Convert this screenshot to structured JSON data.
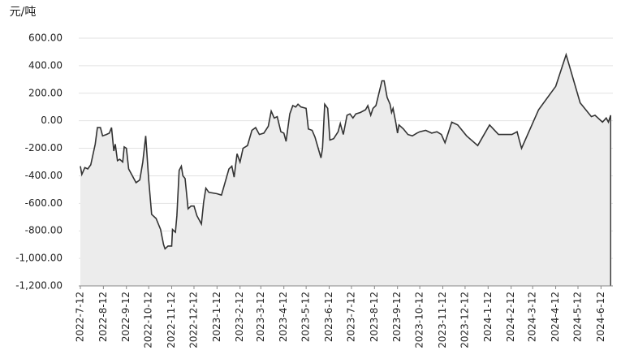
{
  "chart_data": {
    "type": "area",
    "y_unit": "元/吨",
    "color": "#333333",
    "fill": "#ececec",
    "grid": true,
    "x": [
      "2022-7-12",
      "2022-7-14",
      "2022-7-18",
      "2022-7-22",
      "2022-7-26",
      "2022-8-1",
      "2022-8-4",
      "2022-8-8",
      "2022-8-11",
      "2022-8-16",
      "2022-8-20",
      "2022-8-23",
      "2022-8-26",
      "2022-8-28",
      "2022-8-31",
      "2022-9-3",
      "2022-9-7",
      "2022-9-9",
      "2022-9-12",
      "2022-9-15",
      "2022-9-25",
      "2022-9-30",
      "2022-10-4",
      "2022-10-8",
      "2022-10-12",
      "2022-10-16",
      "2022-10-22",
      "2022-10-28",
      "2022-11-1",
      "2022-11-3",
      "2022-11-7",
      "2022-11-12",
      "2022-11-13",
      "2022-11-17",
      "2022-11-19",
      "2022-11-22",
      "2022-11-25",
      "2022-11-27",
      "2022-11-30",
      "2022-12-4",
      "2022-12-8",
      "2022-12-12",
      "2022-12-16",
      "2022-12-22",
      "2022-12-25",
      "2022-12-28",
      "2023-1-1",
      "2023-1-12",
      "2023-1-18",
      "2023-1-28",
      "2023-2-1",
      "2023-2-4",
      "2023-2-8",
      "2023-2-12",
      "2023-2-16",
      "2023-2-22",
      "2023-2-28",
      "2023-3-5",
      "2023-3-10",
      "2023-3-16",
      "2023-3-22",
      "2023-3-26",
      "2023-3-30",
      "2023-4-3",
      "2023-4-8",
      "2023-4-12",
      "2023-4-15",
      "2023-4-20",
      "2023-4-24",
      "2023-4-28",
      "2023-5-1",
      "2023-5-5",
      "2023-5-12",
      "2023-5-15",
      "2023-5-20",
      "2023-5-24",
      "2023-6-1",
      "2023-6-3",
      "2023-6-6",
      "2023-6-10",
      "2023-6-13",
      "2023-6-18",
      "2023-6-24",
      "2023-6-27",
      "2023-7-1",
      "2023-7-6",
      "2023-7-10",
      "2023-7-14",
      "2023-7-18",
      "2023-7-24",
      "2023-7-31",
      "2023-8-3",
      "2023-8-7",
      "2023-8-10",
      "2023-8-14",
      "2023-8-18",
      "2023-8-22",
      "2023-8-25",
      "2023-8-29",
      "2023-9-2",
      "2023-9-4",
      "2023-9-6",
      "2023-9-10",
      "2023-9-12",
      "2023-9-14",
      "2023-9-20",
      "2023-9-26",
      "2023-10-2",
      "2023-10-8",
      "2023-10-12",
      "2023-10-20",
      "2023-10-28",
      "2023-11-4",
      "2023-11-10",
      "2023-11-15",
      "2023-11-24",
      "2023-12-2",
      "2023-12-14",
      "2023-12-29",
      "2024-1-14",
      "2024-1-26",
      "2024-2-13",
      "2024-2-20",
      "2024-2-23",
      "2024-2-26",
      "2024-3-20",
      "2024-4-12",
      "2024-4-26",
      "2024-5-15",
      "2024-5-30",
      "2024-6-4",
      "2024-6-14",
      "2024-6-19",
      "2024-6-22",
      "2024-6-25"
    ],
    "values": [
      -330,
      -390,
      -340,
      -350,
      -320,
      -170,
      -50,
      -50,
      -110,
      -100,
      -90,
      -50,
      -220,
      -170,
      -290,
      -280,
      -300,
      -190,
      -200,
      -350,
      -450,
      -430,
      -300,
      -110,
      -430,
      -680,
      -710,
      -790,
      -900,
      -930,
      -910,
      -910,
      -790,
      -810,
      -690,
      -360,
      -330,
      -400,
      -420,
      -640,
      -620,
      -620,
      -690,
      -750,
      -590,
      -490,
      -520,
      -530,
      -540,
      -350,
      -330,
      -410,
      -240,
      -300,
      -200,
      -180,
      -70,
      -50,
      -100,
      -90,
      -40,
      70,
      20,
      30,
      -80,
      -90,
      -150,
      50,
      110,
      100,
      120,
      100,
      90,
      -60,
      -70,
      -120,
      -270,
      -200,
      120,
      90,
      -140,
      -130,
      -80,
      -20,
      -100,
      40,
      50,
      20,
      50,
      60,
      80,
      110,
      40,
      90,
      110,
      200,
      290,
      290,
      170,
      120,
      60,
      90,
      -20,
      -90,
      -30,
      -60,
      -100,
      -110,
      -90,
      -80,
      -70,
      -90,
      -80,
      -100,
      -160,
      -10,
      -30,
      -110,
      -180,
      -30,
      -100,
      -100,
      -80,
      -140,
      -200,
      80,
      250,
      480,
      130,
      30,
      40,
      -10,
      20,
      -10,
      40
    ],
    "xlim": [
      "2022-7-12",
      "2024-6-28"
    ],
    "xticks": [
      "2022-7-12",
      "2022-8-12",
      "2022-9-12",
      "2022-10-12",
      "2022-11-12",
      "2022-12-12",
      "2023-1-12",
      "2023-2-12",
      "2023-3-12",
      "2023-4-12",
      "2023-5-12",
      "2023-6-12",
      "2023-7-12",
      "2023-8-12",
      "2023-9-12",
      "2023-10-12",
      "2023-11-12",
      "2023-12-12",
      "2024-1-12",
      "2024-2-12",
      "2024-3-12",
      "2024-4-12",
      "2024-5-12",
      "2024-6-12"
    ],
    "ylim": [
      -1200,
      600
    ],
    "yticks": [
      {
        "value": -1200,
        "label": "-1,200.00"
      },
      {
        "value": -1000,
        "label": "-1,000.00"
      },
      {
        "value": -800,
        "label": "-800.00"
      },
      {
        "value": -600,
        "label": "-600.00"
      },
      {
        "value": -400,
        "label": "-400.00"
      },
      {
        "value": -200,
        "label": "-200.00"
      },
      {
        "value": 0,
        "label": "0.00"
      },
      {
        "value": 200,
        "label": "200.00"
      },
      {
        "value": 400,
        "label": "400.00"
      },
      {
        "value": 600,
        "label": "600.00"
      }
    ]
  }
}
